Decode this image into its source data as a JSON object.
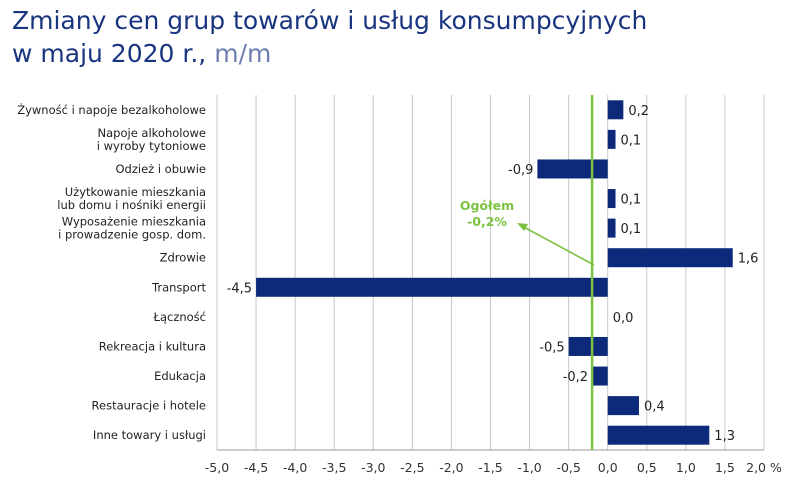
{
  "chart_data": {
    "type": "bar",
    "orientation": "horizontal",
    "title_line1": "Zmiany cen grup towarów i usług konsumpcyjnych",
    "title_line2": "w maju 2020 r.,",
    "title_unit": "m/m",
    "categories": [
      [
        "Żywność i napoje bezalkoholowe"
      ],
      [
        "Napoje alkoholowe",
        "i wyroby tytoniowe"
      ],
      [
        "Odzież i obuwie"
      ],
      [
        "Użytkowanie mieszkania",
        "lub domu i nośniki energii"
      ],
      [
        "Wyposażenie mieszkania",
        "i prowadzenie gosp. dom."
      ],
      [
        "Zdrowie"
      ],
      [
        "Transport"
      ],
      [
        "Łączność"
      ],
      [
        "Rekreacja i kultura"
      ],
      [
        "Edukacja"
      ],
      [
        "Restauracje i hotele"
      ],
      [
        "Inne towary i usługi"
      ]
    ],
    "values": [
      0.2,
      0.1,
      -0.9,
      0.1,
      0.1,
      1.6,
      -4.5,
      0.0,
      -0.5,
      -0.2,
      0.4,
      1.3
    ],
    "value_labels": [
      "0,2",
      "0,1",
      "-0,9",
      "0,1",
      "0,1",
      "1,6",
      "-4,5",
      "0,0",
      "-0,5",
      "-0,2",
      "0,4",
      "1,3"
    ],
    "xlim": [
      -5.0,
      2.0
    ],
    "xticks": [
      -5.0,
      -4.5,
      -4.0,
      -3.5,
      -3.0,
      -2.5,
      -2.0,
      -1.5,
      -1.0,
      -0.5,
      0.0,
      0.5,
      1.0,
      1.5,
      2.0
    ],
    "xtick_labels": [
      "-5,0",
      "-4,5",
      "-4,0",
      "-3,5",
      "-3,0",
      "-2,5",
      "-2,0",
      "-1,5",
      "-1,0",
      "-0,5",
      "0,0",
      "0,5",
      "1,0",
      "1,5",
      "2,0 %"
    ],
    "grid": "vertical",
    "reference_line": {
      "value": -0.2,
      "label_line1": "Ogółem",
      "label_line2": "-0,2%"
    },
    "colors": {
      "bar": "#0d2a7a",
      "reference": "#7cc242",
      "title": "#1a3580",
      "grid": "#c8c8c8"
    }
  }
}
